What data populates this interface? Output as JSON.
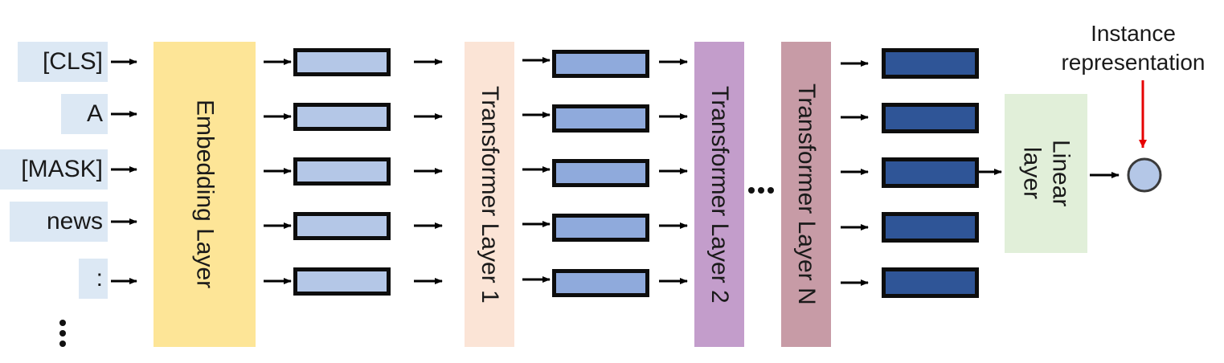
{
  "tokens": [
    "[CLS]",
    "A",
    "[MASK]",
    "news",
    ":"
  ],
  "blocks": {
    "embedding": "Embedding Layer",
    "transformer_1": "Transformer Layer 1",
    "transformer_2": "Transformer Layer 2",
    "transformer_n": "Transformer Layer N",
    "linear": "Linear\nlayer"
  },
  "annotation": {
    "line1": "Instance",
    "line2": "representation"
  },
  "colors": {
    "token_bg": "#dce8f4",
    "embedding": "#fde597",
    "transformer_1": "#fbe4d6",
    "transformer_2": "#c39dcb",
    "transformer_n": "#c79ba6",
    "linear": "#e1efd9",
    "vec_light": "#b4c7e7",
    "vec_mid": "#8faadc",
    "vec_dark": "#2f5597",
    "output_node": "#b4c7e7",
    "annotation_arrow": "#e60000"
  }
}
